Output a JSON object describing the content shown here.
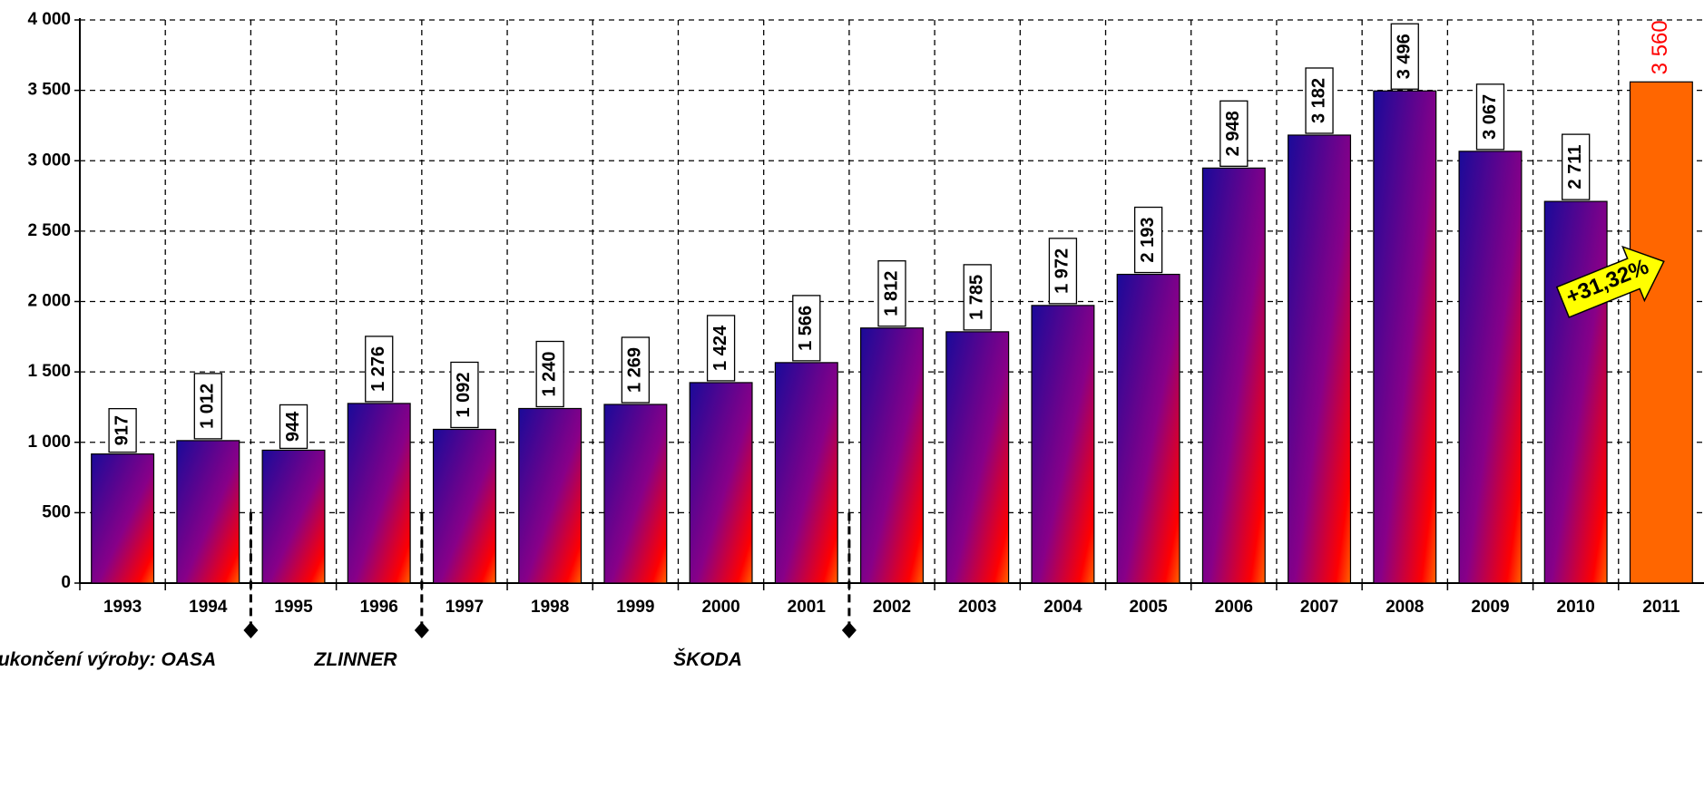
{
  "chart_data": {
    "type": "bar",
    "title": "",
    "xlabel": "",
    "ylabel": "",
    "categories": [
      "1993",
      "1994",
      "1995",
      "1996",
      "1997",
      "1998",
      "1999",
      "2000",
      "2001",
      "2002",
      "2003",
      "2004",
      "2005",
      "2006",
      "2007",
      "2008",
      "2009",
      "2010",
      "2011"
    ],
    "values": [
      917,
      1012,
      944,
      1276,
      1092,
      1240,
      1269,
      1424,
      1566,
      1812,
      1785,
      1972,
      2193,
      2948,
      3182,
      3496,
      3067,
      2711,
      3560
    ],
    "value_labels": [
      "917",
      "1 012",
      "944",
      "1 276",
      "1 092",
      "1 240",
      "1 269",
      "1 424",
      "1 566",
      "1 812",
      "1 785",
      "1 972",
      "2 193",
      "2 948",
      "3 182",
      "3 496",
      "3 067",
      "2 711",
      "3 560"
    ],
    "ylim": [
      0,
      4000
    ],
    "yticks": [
      0,
      500,
      1000,
      1500,
      2000,
      2500,
      3000,
      3500,
      4000
    ],
    "ytick_labels": [
      "0",
      "500",
      "1 000",
      "1 500",
      "2 000",
      "2 500",
      "3 000",
      "3 500",
      "4 000"
    ],
    "grid": true,
    "legend": "none",
    "highlight_category": "2011",
    "colors": {
      "bar_gradient_top": "#1a0a99",
      "bar_gradient_mid": "#880088",
      "bar_gradient_bottom": "#ff0000",
      "highlight_bar": "#ff6600",
      "highlight_value_text": "#ff0000",
      "growth_arrow": "#ffff00"
    },
    "annotations": {
      "growth": "+31,32%",
      "end_of_production_prefix": "ukončení výroby: OASA",
      "markers": [
        {
          "after_category": "1994",
          "label": "ukončení výroby: OASA"
        },
        {
          "after_category": "1996",
          "label": "ZLINNER"
        },
        {
          "after_category": "2001",
          "label": "ŠKODA"
        }
      ]
    }
  }
}
